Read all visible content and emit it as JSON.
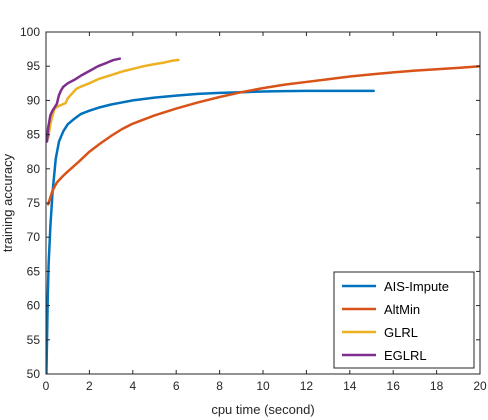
{
  "chart_data": {
    "type": "line",
    "xlabel": "cpu time (second)",
    "ylabel": "training accuracy",
    "xlim": [
      0,
      20
    ],
    "ylim": [
      50,
      100
    ],
    "xticks": [
      "0",
      "2",
      "4",
      "6",
      "8",
      "10",
      "12",
      "14",
      "16",
      "18",
      "20"
    ],
    "yticks": [
      "50",
      "55",
      "60",
      "65",
      "70",
      "75",
      "80",
      "85",
      "90",
      "95",
      "100"
    ],
    "grid": false,
    "legend_position": "bottom-right",
    "series": [
      {
        "name": "AIS-Impute",
        "color": "#0072BD",
        "x": [
          0.02,
          0.05,
          0.08,
          0.12,
          0.2,
          0.3,
          0.45,
          0.6,
          0.8,
          1.0,
          1.3,
          1.6,
          2.0,
          2.5,
          3.0,
          3.5,
          4.0,
          5.0,
          6.0,
          7.0,
          8.0,
          9.0,
          10.0,
          11.0,
          12.0,
          13.0,
          14.0,
          15.1
        ],
        "y": [
          50.0,
          55.5,
          61.0,
          66.0,
          71.5,
          76.5,
          81.5,
          84.0,
          85.5,
          86.5,
          87.3,
          88.0,
          88.5,
          89.0,
          89.4,
          89.7,
          90.0,
          90.4,
          90.7,
          90.95,
          91.1,
          91.2,
          91.3,
          91.35,
          91.4,
          91.4,
          91.4,
          91.4
        ]
      },
      {
        "name": "AltMin",
        "color": "#D95319",
        "x": [
          0.1,
          0.2,
          0.3,
          0.5,
          0.8,
          1.0,
          1.5,
          2.0,
          2.5,
          3.0,
          3.5,
          4.0,
          5.0,
          6.0,
          7.0,
          8.0,
          9.0,
          10.0,
          11.0,
          12.0,
          13.0,
          14.0,
          15.0,
          16.0,
          17.0,
          18.0,
          19.0,
          20.0
        ],
        "y": [
          74.8,
          75.8,
          76.8,
          78.0,
          79.0,
          79.6,
          81.0,
          82.5,
          83.7,
          84.8,
          85.8,
          86.6,
          87.8,
          88.8,
          89.7,
          90.5,
          91.2,
          91.8,
          92.3,
          92.7,
          93.1,
          93.5,
          93.8,
          94.1,
          94.35,
          94.55,
          94.75,
          95.0
        ]
      },
      {
        "name": "GLRL",
        "color": "#EDB120",
        "x": [
          0.1,
          0.2,
          0.3,
          0.4,
          0.6,
          0.9,
          1.0,
          1.2,
          1.4,
          1.6,
          2.0,
          2.4,
          2.8,
          3.2,
          3.6,
          4.0,
          4.5,
          5.0,
          5.4,
          5.8,
          6.1
        ],
        "y": [
          84.5,
          86.5,
          87.8,
          88.8,
          89.2,
          89.6,
          90.3,
          91.0,
          91.7,
          92.0,
          92.5,
          93.1,
          93.5,
          93.9,
          94.3,
          94.6,
          95.0,
          95.3,
          95.5,
          95.8,
          95.9
        ]
      },
      {
        "name": "EGLRL",
        "color": "#7E2F8E",
        "x": [
          0.05,
          0.1,
          0.2,
          0.3,
          0.4,
          0.5,
          0.6,
          0.7,
          0.8,
          1.0,
          1.3,
          1.6,
          2.0,
          2.4,
          2.8,
          3.1,
          3.4
        ],
        "y": [
          84.0,
          86.0,
          87.8,
          88.5,
          89.0,
          89.5,
          90.8,
          91.5,
          92.0,
          92.5,
          93.0,
          93.6,
          94.3,
          95.0,
          95.5,
          95.9,
          96.1
        ]
      }
    ]
  }
}
